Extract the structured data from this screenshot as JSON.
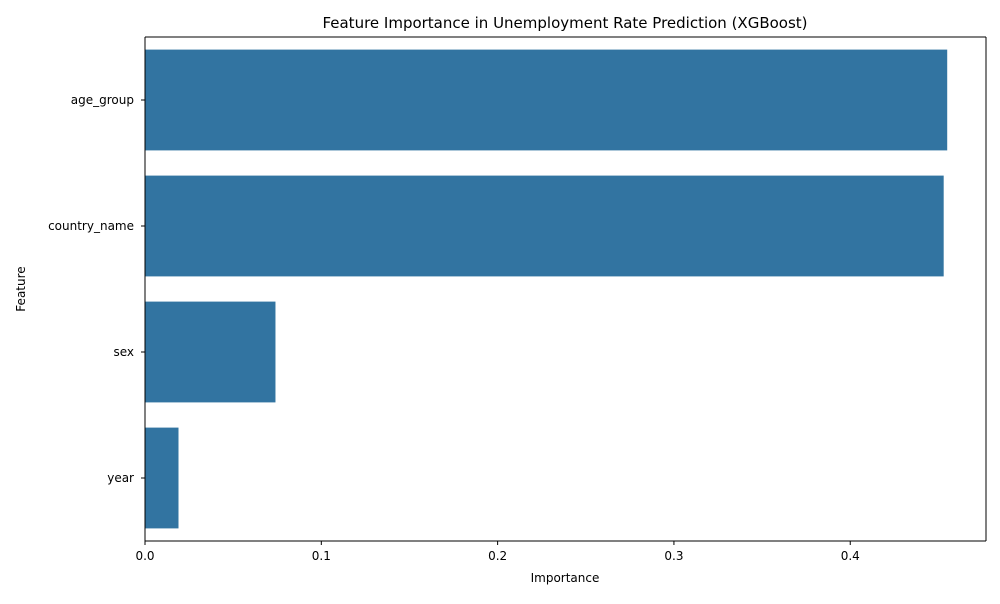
{
  "chart_data": {
    "type": "bar",
    "orientation": "horizontal",
    "title": "Feature Importance in Unemployment Rate Prediction (XGBoost)",
    "xlabel": "Importance",
    "ylabel": "Feature",
    "categories": [
      "age_group",
      "country_name",
      "sex",
      "year"
    ],
    "values": [
      0.455,
      0.453,
      0.074,
      0.019
    ],
    "xlim": [
      0,
      0.477
    ],
    "xticks": [
      0.0,
      0.1,
      0.2,
      0.3,
      0.4
    ],
    "xtick_labels": [
      "0.0",
      "0.1",
      "0.2",
      "0.3",
      "0.4"
    ],
    "bar_color": "#3274a1",
    "grid": false,
    "legend": "none"
  }
}
